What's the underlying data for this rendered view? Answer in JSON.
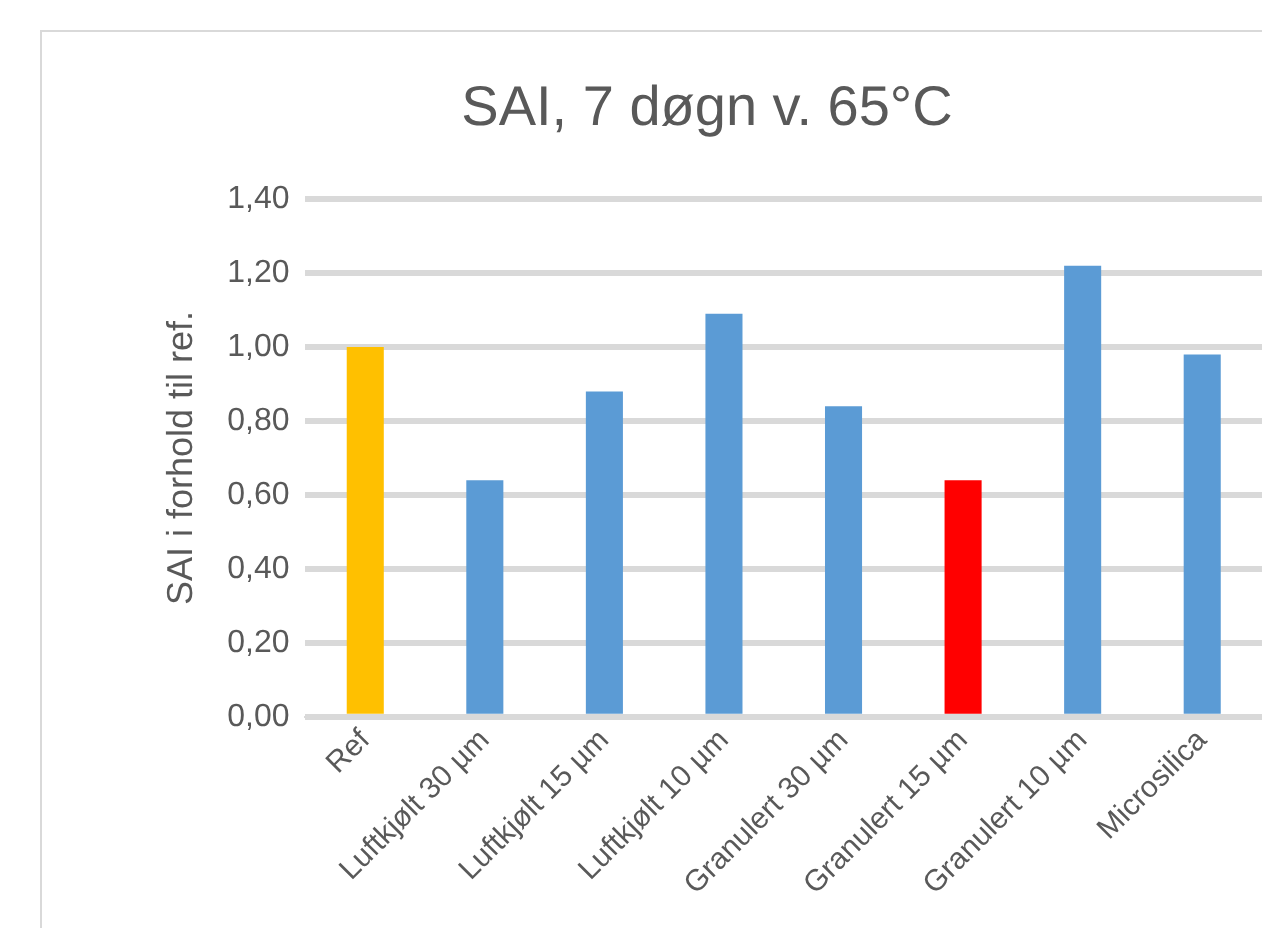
{
  "chart_data": {
    "type": "bar",
    "title": "SAI, 7 døgn v. 65°C",
    "ylabel": "SAI i forhold til ref.",
    "categories": [
      "Ref",
      "Luftkjølt 30 µm",
      "Luftkjølt 15 µm",
      "Luftkjølt 10 µm",
      "Granulert 30 µm",
      "Granulert 15 µm",
      "Granulert 10 µm",
      "Microsilica"
    ],
    "values": [
      1.0,
      0.64,
      0.88,
      1.09,
      0.84,
      0.64,
      1.22,
      0.98
    ],
    "colors": [
      "#ffc000",
      "#5b9bd5",
      "#5b9bd5",
      "#5b9bd5",
      "#5b9bd5",
      "#ff0000",
      "#5b9bd5",
      "#5b9bd5"
    ],
    "ylim": [
      0,
      1.4
    ],
    "yticks": [
      {
        "value": 0,
        "label": "0,00"
      },
      {
        "value": 0.2,
        "label": "0,20"
      },
      {
        "value": 0.4,
        "label": "0,40"
      },
      {
        "value": 0.6,
        "label": "0,60"
      },
      {
        "value": 0.8,
        "label": "0,80"
      },
      {
        "value": 1,
        "label": "1,00"
      },
      {
        "value": 1.2,
        "label": "1,20"
      },
      {
        "value": 1.4,
        "label": "1,40"
      }
    ],
    "grid": "y",
    "legend": false
  }
}
